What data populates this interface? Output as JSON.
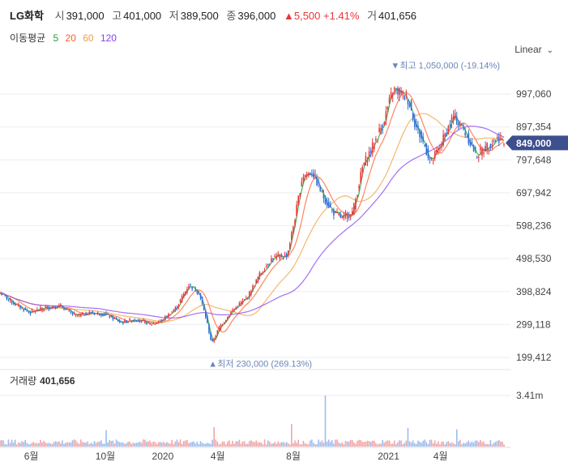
{
  "header": {
    "stock_name": "LG화학",
    "open_label": "시",
    "open_value": "391,000",
    "high_label": "고",
    "high_value": "401,000",
    "low_label": "저",
    "low_value": "389,500",
    "close_label": "종",
    "close_value": "396,000",
    "change_value": "▲5,500 +1.41%",
    "volume_label": "거",
    "volume_value": "401,656"
  },
  "moving_average": {
    "label": "이동평균",
    "periods": [
      "5",
      "20",
      "60",
      "120"
    ]
  },
  "scale_selector": {
    "label": "Linear",
    "chevron_icon": "chevron-down-icon"
  },
  "volume_panel": {
    "label": "거래량",
    "value": "401,656",
    "max_tick": "3.41m"
  },
  "colors": {
    "up": "#e5383b",
    "down": "#2f6fd8",
    "ma5": "#1fa33a",
    "ma20": "#ff5c2b",
    "ma60": "#f0a040",
    "ma120": "#8a3ff0",
    "badge": "#3d4f8c",
    "annotation": "#6b86b8"
  },
  "chart_data": {
    "type": "candlestick",
    "title": "LG화학",
    "y_ticks": [
      "997,060",
      "897,354",
      "797,648",
      "697,942",
      "598,236",
      "498,530",
      "398,824",
      "299,118",
      "199,412"
    ],
    "y_tick_values": [
      997060,
      897354,
      797648,
      697942,
      598236,
      498530,
      398824,
      299118,
      199412
    ],
    "ylim": [
      175000,
      1090000
    ],
    "x_ticks": [
      "6월",
      "10월",
      "2020",
      "4월",
      "8월",
      "2021",
      "4월"
    ],
    "x_tick_positions": [
      0.062,
      0.209,
      0.323,
      0.432,
      0.582,
      0.771,
      0.874
    ],
    "current_price": "849,000",
    "current_price_value": 849000,
    "high_annotation": {
      "text": "최고 1,050,000 (-19.14%)",
      "value": 1050000,
      "at": 0.782
    },
    "low_annotation": {
      "text": "최저 230,000 (269.13%)",
      "value": 230000,
      "at": 0.42
    },
    "price_path": [
      [
        0.0,
        395000
      ],
      [
        0.03,
        360000
      ],
      [
        0.06,
        335000
      ],
      [
        0.09,
        350000
      ],
      [
        0.12,
        355000
      ],
      [
        0.15,
        325000
      ],
      [
        0.18,
        335000
      ],
      [
        0.21,
        330000
      ],
      [
        0.24,
        305000
      ],
      [
        0.27,
        315000
      ],
      [
        0.3,
        300000
      ],
      [
        0.32,
        310000
      ],
      [
        0.35,
        350000
      ],
      [
        0.375,
        420000
      ],
      [
        0.395,
        395000
      ],
      [
        0.41,
        310000
      ],
      [
        0.42,
        240000
      ],
      [
        0.435,
        290000
      ],
      [
        0.46,
        340000
      ],
      [
        0.49,
        380000
      ],
      [
        0.515,
        450000
      ],
      [
        0.54,
        500000
      ],
      [
        0.57,
        510000
      ],
      [
        0.585,
        620000
      ],
      [
        0.6,
        750000
      ],
      [
        0.62,
        760000
      ],
      [
        0.64,
        690000
      ],
      [
        0.66,
        640000
      ],
      [
        0.68,
        620000
      ],
      [
        0.7,
        640000
      ],
      [
        0.72,
        780000
      ],
      [
        0.74,
        840000
      ],
      [
        0.76,
        910000
      ],
      [
        0.78,
        1010000
      ],
      [
        0.795,
        1000000
      ],
      [
        0.81,
        980000
      ],
      [
        0.825,
        900000
      ],
      [
        0.84,
        850000
      ],
      [
        0.855,
        790000
      ],
      [
        0.87,
        830000
      ],
      [
        0.885,
        880000
      ],
      [
        0.9,
        930000
      ],
      [
        0.915,
        900000
      ],
      [
        0.93,
        860000
      ],
      [
        0.945,
        810000
      ],
      [
        0.96,
        830000
      ],
      [
        0.975,
        850000
      ],
      [
        0.99,
        865000
      ],
      [
        1.0,
        849000
      ]
    ],
    "moving_averages": [
      {
        "name": "5",
        "period": 5
      },
      {
        "name": "20",
        "period": 20
      },
      {
        "name": "60",
        "period": 60
      },
      {
        "name": "120",
        "period": 120
      }
    ],
    "volume_ylim": [
      0,
      3410000
    ],
    "volume_spikes": [
      {
        "at": 0.645,
        "value": 3410000
      },
      {
        "at": 0.578,
        "value": 1500000
      },
      {
        "at": 0.425,
        "value": 1300000
      },
      {
        "at": 0.21,
        "value": 1100000
      },
      {
        "at": 0.81,
        "value": 1250000
      },
      {
        "at": 0.905,
        "value": 1150000
      }
    ]
  }
}
